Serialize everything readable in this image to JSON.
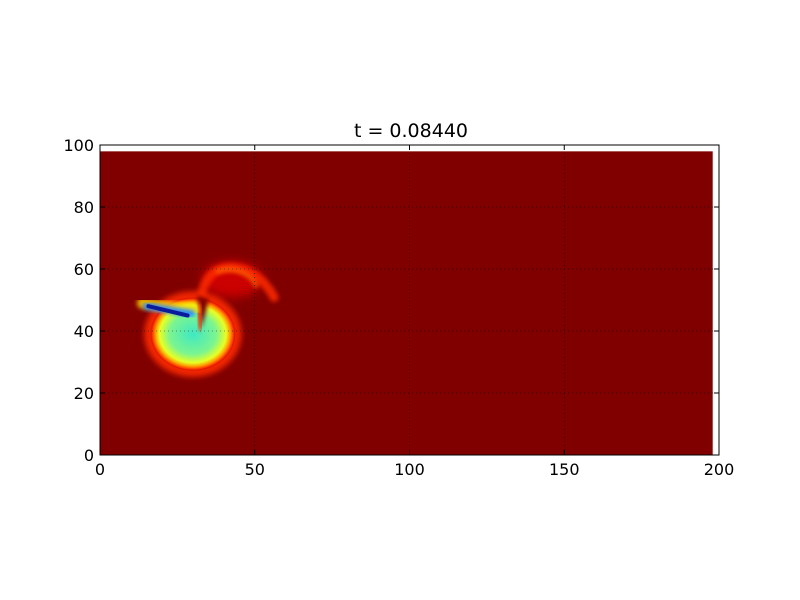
{
  "chart_data": {
    "type": "heatmap",
    "title": "t = 0.08440",
    "xlabel": "",
    "ylabel": "",
    "xlim": [
      0,
      200
    ],
    "ylim": [
      0,
      100
    ],
    "xticks": [
      "0",
      "50",
      "100",
      "150",
      "200"
    ],
    "yticks": [
      "0",
      "20",
      "40",
      "60",
      "80",
      "100"
    ],
    "grid": true,
    "grid_style": "dotted",
    "colormap": "jet",
    "field_extent": {
      "x": [
        0,
        198
      ],
      "y": [
        0,
        98
      ]
    },
    "background_value_color": "#800000",
    "features": [
      {
        "kind": "cavity",
        "center": [
          30,
          39
        ],
        "radius": 9.5,
        "value_color": "#5cf0a6"
      },
      {
        "kind": "low-value-streak",
        "from": [
          15,
          48
        ],
        "to": [
          27,
          45
        ],
        "value_color": "#0a1c9c"
      },
      {
        "kind": "plume-arc",
        "center": [
          42,
          56
        ],
        "value_color": "#ff2a00"
      }
    ]
  }
}
